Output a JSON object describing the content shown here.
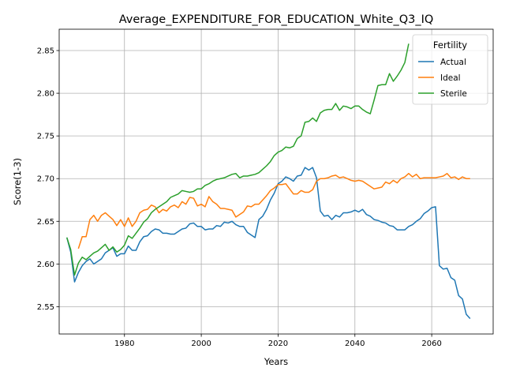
{
  "chart_data": {
    "type": "line",
    "title": "Average_EXPENDITURE_FOR_EDUCATION_White_Q3_IQ",
    "xlabel": "Years",
    "ylabel": "Score(1-3)",
    "xlim": [
      1963,
      2076
    ],
    "ylim": [
      2.518,
      2.875
    ],
    "xticks": [
      1960,
      1980,
      2000,
      2020,
      2040,
      2060
    ],
    "yticks": [
      2.55,
      2.6,
      2.65,
      2.7,
      2.75,
      2.8,
      2.85
    ],
    "xtick_labels": [
      "1960",
      "1980",
      "2000",
      "2020",
      "2040",
      "2060"
    ],
    "ytick_labels": [
      "2.55",
      "2.60",
      "2.65",
      "2.70",
      "2.75",
      "2.80",
      "2.85"
    ],
    "grid": true,
    "legend": {
      "title": "Fertility",
      "position": "top-right"
    },
    "series": [
      {
        "name": "Actual",
        "color": "#1f77b4",
        "points": [
          [
            1965,
            2.631
          ],
          [
            1966,
            2.614
          ],
          [
            1967,
            2.579
          ],
          [
            1968,
            2.59
          ],
          [
            1969,
            2.598
          ],
          [
            1970,
            2.603
          ],
          [
            1971,
            2.606
          ],
          [
            1972,
            2.6
          ],
          [
            1973,
            2.603
          ],
          [
            1974,
            2.606
          ],
          [
            1975,
            2.613
          ],
          [
            1976,
            2.616
          ],
          [
            1977,
            2.619
          ],
          [
            1978,
            2.609
          ],
          [
            1979,
            2.612
          ],
          [
            1980,
            2.612
          ],
          [
            1981,
            2.621
          ],
          [
            1982,
            2.616
          ],
          [
            1983,
            2.616
          ],
          [
            1984,
            2.626
          ],
          [
            1985,
            2.632
          ],
          [
            1986,
            2.633
          ],
          [
            1987,
            2.638
          ],
          [
            1988,
            2.641
          ],
          [
            1989,
            2.64
          ],
          [
            1990,
            2.636
          ],
          [
            1991,
            2.636
          ],
          [
            1992,
            2.635
          ],
          [
            1993,
            2.635
          ],
          [
            1994,
            2.638
          ],
          [
            1995,
            2.641
          ],
          [
            1996,
            2.642
          ],
          [
            1997,
            2.647
          ],
          [
            1998,
            2.648
          ],
          [
            1999,
            2.644
          ],
          [
            2000,
            2.644
          ],
          [
            2001,
            2.64
          ],
          [
            2002,
            2.641
          ],
          [
            2003,
            2.641
          ],
          [
            2004,
            2.645
          ],
          [
            2005,
            2.644
          ],
          [
            2006,
            2.649
          ],
          [
            2007,
            2.648
          ],
          [
            2008,
            2.65
          ],
          [
            2009,
            2.646
          ],
          [
            2010,
            2.644
          ],
          [
            2011,
            2.644
          ],
          [
            2012,
            2.637
          ],
          [
            2013,
            2.634
          ],
          [
            2014,
            2.631
          ],
          [
            2015,
            2.652
          ],
          [
            2016,
            2.656
          ],
          [
            2017,
            2.664
          ],
          [
            2018,
            2.675
          ],
          [
            2019,
            2.683
          ],
          [
            2020,
            2.694
          ],
          [
            2021,
            2.697
          ],
          [
            2022,
            2.702
          ],
          [
            2023,
            2.7
          ],
          [
            2024,
            2.697
          ],
          [
            2025,
            2.703
          ],
          [
            2026,
            2.704
          ],
          [
            2027,
            2.713
          ],
          [
            2028,
            2.71
          ],
          [
            2029,
            2.713
          ],
          [
            2030,
            2.701
          ],
          [
            2031,
            2.662
          ],
          [
            2032,
            2.656
          ],
          [
            2033,
            2.657
          ],
          [
            2034,
            2.652
          ],
          [
            2035,
            2.657
          ],
          [
            2036,
            2.655
          ],
          [
            2037,
            2.66
          ],
          [
            2038,
            2.66
          ],
          [
            2039,
            2.661
          ],
          [
            2040,
            2.663
          ],
          [
            2041,
            2.661
          ],
          [
            2042,
            2.664
          ],
          [
            2043,
            2.658
          ],
          [
            2044,
            2.656
          ],
          [
            2045,
            2.652
          ],
          [
            2046,
            2.651
          ],
          [
            2047,
            2.649
          ],
          [
            2048,
            2.648
          ],
          [
            2049,
            2.645
          ],
          [
            2050,
            2.644
          ],
          [
            2051,
            2.64
          ],
          [
            2052,
            2.64
          ],
          [
            2053,
            2.64
          ],
          [
            2054,
            2.644
          ],
          [
            2055,
            2.646
          ],
          [
            2056,
            2.65
          ],
          [
            2057,
            2.653
          ],
          [
            2058,
            2.659
          ],
          [
            2059,
            2.662
          ],
          [
            2060,
            2.666
          ],
          [
            2061,
            2.667
          ],
          [
            2062,
            2.598
          ],
          [
            2063,
            2.594
          ],
          [
            2064,
            2.595
          ],
          [
            2065,
            2.584
          ],
          [
            2066,
            2.581
          ],
          [
            2067,
            2.563
          ],
          [
            2068,
            2.559
          ],
          [
            2069,
            2.541
          ],
          [
            2070,
            2.536
          ]
        ]
      },
      {
        "name": "Ideal",
        "color": "#ff7f0e",
        "points": [
          [
            1968,
            2.618
          ],
          [
            1969,
            2.632
          ],
          [
            1970,
            2.632
          ],
          [
            1971,
            2.652
          ],
          [
            1972,
            2.657
          ],
          [
            1973,
            2.65
          ],
          [
            1974,
            2.657
          ],
          [
            1975,
            2.66
          ],
          [
            1976,
            2.656
          ],
          [
            1977,
            2.652
          ],
          [
            1978,
            2.645
          ],
          [
            1979,
            2.652
          ],
          [
            1980,
            2.644
          ],
          [
            1981,
            2.654
          ],
          [
            1982,
            2.644
          ],
          [
            1983,
            2.65
          ],
          [
            1984,
            2.66
          ],
          [
            1985,
            2.663
          ],
          [
            1986,
            2.664
          ],
          [
            1987,
            2.669
          ],
          [
            1988,
            2.667
          ],
          [
            1989,
            2.66
          ],
          [
            1990,
            2.664
          ],
          [
            1991,
            2.662
          ],
          [
            1992,
            2.667
          ],
          [
            1993,
            2.669
          ],
          [
            1994,
            2.666
          ],
          [
            1995,
            2.673
          ],
          [
            1996,
            2.67
          ],
          [
            1997,
            2.678
          ],
          [
            1998,
            2.677
          ],
          [
            1999,
            2.668
          ],
          [
            2000,
            2.67
          ],
          [
            2001,
            2.667
          ],
          [
            2002,
            2.679
          ],
          [
            2003,
            2.673
          ],
          [
            2004,
            2.67
          ],
          [
            2005,
            2.665
          ],
          [
            2006,
            2.665
          ],
          [
            2007,
            2.664
          ],
          [
            2008,
            2.663
          ],
          [
            2009,
            2.655
          ],
          [
            2010,
            2.658
          ],
          [
            2011,
            2.661
          ],
          [
            2012,
            2.668
          ],
          [
            2013,
            2.667
          ],
          [
            2014,
            2.67
          ],
          [
            2015,
            2.67
          ],
          [
            2016,
            2.675
          ],
          [
            2017,
            2.68
          ],
          [
            2018,
            2.686
          ],
          [
            2019,
            2.689
          ],
          [
            2020,
            2.693
          ],
          [
            2021,
            2.693
          ],
          [
            2022,
            2.694
          ],
          [
            2023,
            2.688
          ],
          [
            2024,
            2.682
          ],
          [
            2025,
            2.682
          ],
          [
            2026,
            2.686
          ],
          [
            2027,
            2.684
          ],
          [
            2028,
            2.684
          ],
          [
            2029,
            2.687
          ],
          [
            2030,
            2.697
          ],
          [
            2031,
            2.7
          ],
          [
            2032,
            2.7
          ],
          [
            2033,
            2.701
          ],
          [
            2034,
            2.703
          ],
          [
            2035,
            2.704
          ],
          [
            2036,
            2.701
          ],
          [
            2037,
            2.702
          ],
          [
            2038,
            2.7
          ],
          [
            2039,
            2.698
          ],
          [
            2040,
            2.697
          ],
          [
            2041,
            2.698
          ],
          [
            2042,
            2.697
          ],
          [
            2043,
            2.694
          ],
          [
            2044,
            2.691
          ],
          [
            2045,
            2.688
          ],
          [
            2046,
            2.689
          ],
          [
            2047,
            2.69
          ],
          [
            2048,
            2.696
          ],
          [
            2049,
            2.694
          ],
          [
            2050,
            2.698
          ],
          [
            2051,
            2.695
          ],
          [
            2052,
            2.7
          ],
          [
            2053,
            2.702
          ],
          [
            2054,
            2.706
          ],
          [
            2055,
            2.702
          ],
          [
            2056,
            2.705
          ],
          [
            2057,
            2.7
          ],
          [
            2058,
            2.701
          ],
          [
            2059,
            2.701
          ],
          [
            2060,
            2.701
          ],
          [
            2061,
            2.701
          ],
          [
            2062,
            2.702
          ],
          [
            2063,
            2.703
          ],
          [
            2064,
            2.706
          ],
          [
            2065,
            2.701
          ],
          [
            2066,
            2.702
          ],
          [
            2067,
            2.699
          ],
          [
            2068,
            2.702
          ],
          [
            2069,
            2.7
          ],
          [
            2070,
            2.7
          ]
        ]
      },
      {
        "name": "Sterile",
        "color": "#2ca02c",
        "points": [
          [
            1965,
            2.631
          ],
          [
            1966,
            2.617
          ],
          [
            1967,
            2.587
          ],
          [
            1968,
            2.601
          ],
          [
            1969,
            2.608
          ],
          [
            1970,
            2.605
          ],
          [
            1971,
            2.609
          ],
          [
            1972,
            2.613
          ],
          [
            1973,
            2.615
          ],
          [
            1974,
            2.619
          ],
          [
            1975,
            2.623
          ],
          [
            1976,
            2.616
          ],
          [
            1977,
            2.62
          ],
          [
            1978,
            2.614
          ],
          [
            1979,
            2.617
          ],
          [
            1980,
            2.622
          ],
          [
            1981,
            2.633
          ],
          [
            1982,
            2.63
          ],
          [
            1983,
            2.636
          ],
          [
            1984,
            2.642
          ],
          [
            1985,
            2.649
          ],
          [
            1986,
            2.653
          ],
          [
            1987,
            2.66
          ],
          [
            1988,
            2.664
          ],
          [
            1989,
            2.667
          ],
          [
            1990,
            2.67
          ],
          [
            1991,
            2.673
          ],
          [
            1992,
            2.678
          ],
          [
            1993,
            2.68
          ],
          [
            1994,
            2.682
          ],
          [
            1995,
            2.686
          ],
          [
            1996,
            2.685
          ],
          [
            1997,
            2.684
          ],
          [
            1998,
            2.685
          ],
          [
            1999,
            2.688
          ],
          [
            2000,
            2.688
          ],
          [
            2001,
            2.692
          ],
          [
            2002,
            2.694
          ],
          [
            2003,
            2.697
          ],
          [
            2004,
            2.699
          ],
          [
            2005,
            2.7
          ],
          [
            2006,
            2.701
          ],
          [
            2007,
            2.703
          ],
          [
            2008,
            2.705
          ],
          [
            2009,
            2.706
          ],
          [
            2010,
            2.701
          ],
          [
            2011,
            2.703
          ],
          [
            2012,
            2.703
          ],
          [
            2013,
            2.704
          ],
          [
            2014,
            2.705
          ],
          [
            2015,
            2.707
          ],
          [
            2016,
            2.711
          ],
          [
            2017,
            2.715
          ],
          [
            2018,
            2.72
          ],
          [
            2019,
            2.727
          ],
          [
            2020,
            2.731
          ],
          [
            2021,
            2.733
          ],
          [
            2022,
            2.737
          ],
          [
            2023,
            2.736
          ],
          [
            2024,
            2.738
          ],
          [
            2025,
            2.747
          ],
          [
            2026,
            2.75
          ],
          [
            2027,
            2.766
          ],
          [
            2028,
            2.767
          ],
          [
            2029,
            2.771
          ],
          [
            2030,
            2.767
          ],
          [
            2031,
            2.777
          ],
          [
            2032,
            2.78
          ],
          [
            2033,
            2.781
          ],
          [
            2034,
            2.781
          ],
          [
            2035,
            2.788
          ],
          [
            2036,
            2.78
          ],
          [
            2037,
            2.785
          ],
          [
            2038,
            2.784
          ],
          [
            2039,
            2.782
          ],
          [
            2040,
            2.785
          ],
          [
            2041,
            2.785
          ],
          [
            2042,
            2.781
          ],
          [
            2043,
            2.778
          ],
          [
            2044,
            2.776
          ],
          [
            2045,
            2.792
          ],
          [
            2046,
            2.809
          ],
          [
            2047,
            2.81
          ],
          [
            2048,
            2.81
          ],
          [
            2049,
            2.823
          ],
          [
            2050,
            2.814
          ],
          [
            2051,
            2.82
          ],
          [
            2052,
            2.827
          ],
          [
            2053,
            2.836
          ],
          [
            2054,
            2.858
          ]
        ]
      }
    ]
  }
}
